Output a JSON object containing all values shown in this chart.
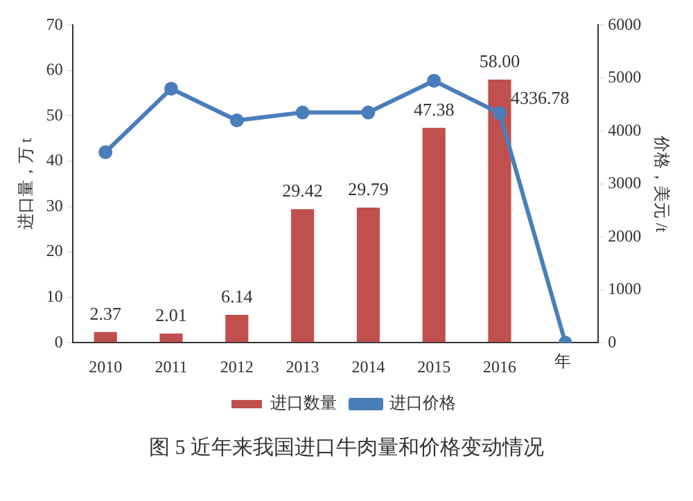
{
  "chart_data": {
    "type": "bar",
    "title": "图 5 近年来我国进口牛肉量和价格变动情况",
    "categories": [
      "2010",
      "2011",
      "2012",
      "2013",
      "2014",
      "2015",
      "2016",
      null
    ],
    "xlabel": "年",
    "ylabel": "进口量，万 t",
    "y2label": "价格，美元 /t",
    "series": [
      {
        "name": "进口数量",
        "color": "#c0504d",
        "values": [
          2.37,
          2.01,
          6.14,
          29.42,
          29.79,
          47.38,
          58.0,
          null
        ],
        "value_labels": [
          "2.37",
          "2.01",
          "6.14",
          "29.42",
          "29.79",
          "47.38",
          "58.00",
          null
        ]
      },
      {
        "name": "进口价格",
        "type": "line",
        "axis": "y2",
        "color": "#4a7ebb",
        "values": [
          3600,
          4800,
          4200,
          4350,
          4350,
          4950,
          4336.78,
          0
        ],
        "value_labels": [
          null,
          null,
          null,
          null,
          null,
          null,
          "4336.78",
          null
        ]
      }
    ],
    "ylim": [
      0,
      70
    ],
    "yticks": [
      0,
      10,
      20,
      30,
      40,
      50,
      60,
      70
    ],
    "y2lim": [
      0,
      6000
    ],
    "y2ticks": [
      0,
      1000,
      2000,
      3000,
      4000,
      5000,
      6000
    ],
    "grid": false,
    "legend": "bottom",
    "marker": "circle",
    "line_style": "solid"
  }
}
